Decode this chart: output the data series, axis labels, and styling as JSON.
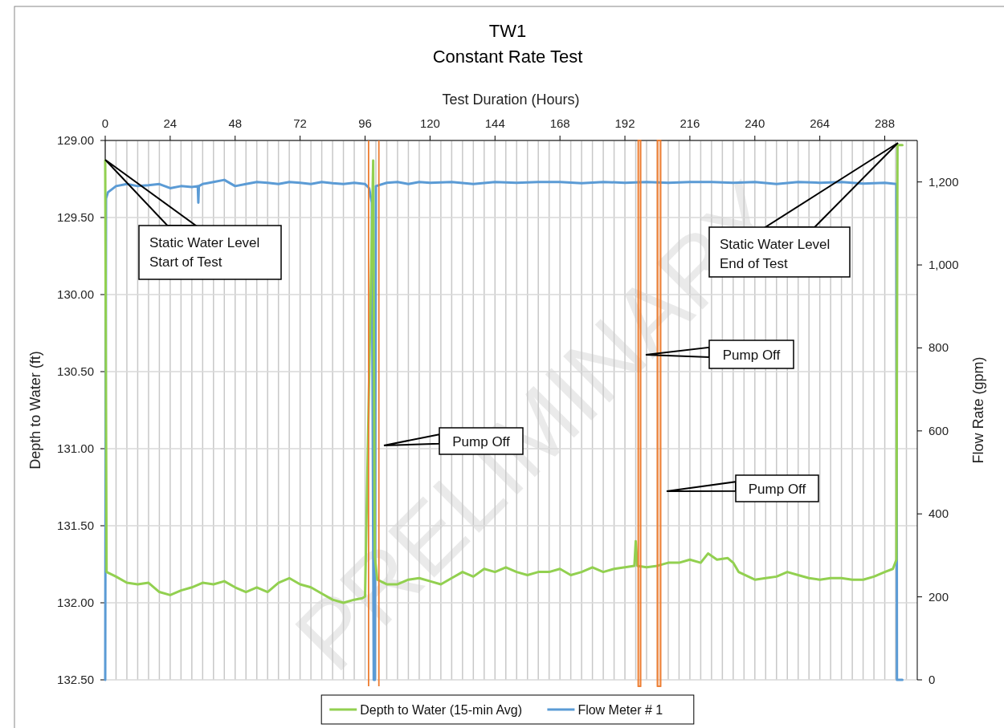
{
  "chart_data": {
    "type": "line",
    "title": "TW1",
    "subtitle": "Constant Rate Test",
    "xlabel": "Test Duration (Hours)",
    "ylabel": "Depth to Water (ft)",
    "y2label": "Flow Rate (gpm)",
    "xlim": [
      0,
      300
    ],
    "xticks": [
      0,
      {
        "value": 4,
        "label": null
      },
      {
        "value": 8,
        "label": null
      },
      {
        "value": 12,
        "label": null
      },
      {
        "value": 16,
        "label": null
      },
      {
        "value": 20,
        "label": null
      },
      24,
      {
        "value": 28,
        "label": null
      },
      {
        "value": 32,
        "label": null
      },
      {
        "value": 36,
        "label": null
      },
      {
        "value": 40,
        "label": null
      },
      {
        "value": 44,
        "label": null
      },
      48,
      {
        "value": 52,
        "label": null
      },
      {
        "value": 56,
        "label": null
      },
      {
        "value": 60,
        "label": null
      },
      {
        "value": 64,
        "label": null
      },
      {
        "value": 68,
        "label": null
      },
      72,
      {
        "value": 76,
        "label": null
      },
      {
        "value": 80,
        "label": null
      },
      {
        "value": 84,
        "label": null
      },
      {
        "value": 88,
        "label": null
      },
      {
        "value": 92,
        "label": null
      },
      96,
      {
        "value": 100,
        "label": null
      },
      {
        "value": 104,
        "label": null
      },
      {
        "value": 108,
        "label": null
      },
      {
        "value": 112,
        "label": null
      },
      {
        "value": 116,
        "label": null
      },
      120,
      {
        "value": 124,
        "label": null
      },
      {
        "value": 128,
        "label": null
      },
      {
        "value": 132,
        "label": null
      },
      {
        "value": 136,
        "label": null
      },
      {
        "value": 140,
        "label": null
      },
      144,
      {
        "value": 148,
        "label": null
      },
      {
        "value": 152,
        "label": null
      },
      {
        "value": 156,
        "label": null
      },
      {
        "value": 160,
        "label": null
      },
      {
        "value": 164,
        "label": null
      },
      168,
      {
        "value": 172,
        "label": null
      },
      {
        "value": 176,
        "label": null
      },
      {
        "value": 180,
        "label": null
      },
      {
        "value": 184,
        "label": null
      },
      {
        "value": 188,
        "label": null
      },
      192,
      {
        "value": 196,
        "label": null
      },
      {
        "value": 200,
        "label": null
      },
      {
        "value": 204,
        "label": null
      },
      {
        "value": 208,
        "label": null
      },
      {
        "value": 212,
        "label": null
      },
      216,
      {
        "value": 220,
        "label": null
      },
      {
        "value": 224,
        "label": null
      },
      {
        "value": 228,
        "label": null
      },
      {
        "value": 232,
        "label": null
      },
      {
        "value": 236,
        "label": null
      },
      240,
      {
        "value": 244,
        "label": null
      },
      {
        "value": 248,
        "label": null
      },
      {
        "value": 252,
        "label": null
      },
      {
        "value": 256,
        "label": null
      },
      {
        "value": 260,
        "label": null
      },
      264,
      {
        "value": 268,
        "label": null
      },
      {
        "value": 272,
        "label": null
      },
      {
        "value": 276,
        "label": null
      },
      {
        "value": 280,
        "label": null
      },
      {
        "value": 284,
        "label": null
      },
      288,
      {
        "value": 292,
        "label": null
      },
      {
        "value": 296,
        "label": null
      }
    ],
    "ylim": [
      132.5,
      129
    ],
    "yticks": [
      {
        "value": 129,
        "label": "129.00"
      },
      {
        "value": 129.5,
        "label": "129.50"
      },
      {
        "value": 130,
        "label": "130.00"
      },
      {
        "value": 130.5,
        "label": "130.50"
      },
      {
        "value": 131,
        "label": "131.00"
      },
      {
        "value": 131.5,
        "label": "131.50"
      },
      {
        "value": 132,
        "label": "132.00"
      },
      {
        "value": 132.5,
        "label": "132.50"
      }
    ],
    "y2lim": [
      0,
      1300
    ],
    "y2ticks": [
      0,
      200,
      400,
      600,
      800,
      {
        "value": 1000,
        "label": "1,000"
      },
      {
        "value": 1200,
        "label": "1,200"
      }
    ],
    "grid": true,
    "legend": "bottom",
    "marker": "none",
    "line_style": "solid",
    "series": [
      {
        "name": "Depth to Water (15-min Avg)",
        "color": "#92d050",
        "x": [
          0,
          0.5,
          4,
          8,
          12,
          16,
          20,
          24,
          28,
          32,
          36,
          40,
          44,
          48,
          52,
          56,
          60,
          64,
          68,
          72,
          76,
          80,
          84,
          88,
          92,
          95,
          96,
          99,
          99.6,
          100.5,
          104,
          108,
          112,
          116,
          120,
          124,
          128,
          132,
          136,
          140,
          144,
          148,
          152,
          156,
          160,
          164,
          168,
          172,
          176,
          180,
          184,
          188,
          192,
          195.5,
          196,
          196.6,
          200,
          204,
          208,
          212,
          216,
          220,
          222.7,
          226,
          230,
          232,
          234,
          240,
          244,
          248,
          252,
          256,
          260,
          264,
          268,
          272,
          276,
          280,
          284,
          288,
          291,
          292.3,
          292.7,
          294.5
        ],
        "values": [
          129.13,
          131.8,
          131.83,
          131.87,
          131.88,
          131.87,
          131.93,
          131.95,
          131.92,
          131.9,
          131.87,
          131.88,
          131.86,
          131.9,
          131.93,
          131.9,
          131.93,
          131.87,
          131.84,
          131.88,
          131.9,
          131.94,
          131.98,
          132.0,
          131.98,
          131.97,
          131.96,
          129.13,
          131.7,
          131.85,
          131.88,
          131.88,
          131.85,
          131.84,
          131.86,
          131.88,
          131.84,
          131.8,
          131.83,
          131.78,
          131.8,
          131.77,
          131.8,
          131.82,
          131.8,
          131.8,
          131.78,
          131.82,
          131.8,
          131.77,
          131.8,
          131.78,
          131.77,
          131.76,
          131.6,
          131.76,
          131.77,
          131.76,
          131.74,
          131.74,
          131.72,
          131.74,
          131.68,
          131.72,
          131.71,
          131.74,
          131.8,
          131.85,
          131.84,
          131.83,
          131.8,
          131.82,
          131.84,
          131.85,
          131.84,
          131.84,
          131.85,
          131.85,
          131.83,
          131.8,
          131.78,
          131.72,
          129.03,
          129.03
        ]
      },
      {
        "name": "Flow Meter # 1",
        "color": "#5b9bd5",
        "axis": "y2",
        "x": [
          0,
          0.3,
          1,
          4,
          8,
          12,
          16,
          20,
          24,
          28,
          32,
          34.2,
          34.4,
          34.6,
          36,
          40,
          44,
          48,
          52,
          56,
          60,
          64,
          68,
          72,
          76,
          80,
          84,
          88,
          92,
          96,
          97.5,
          98.5,
          99.2,
          99.6,
          100,
          104,
          108,
          112,
          116,
          120,
          128,
          136,
          144,
          152,
          160,
          168,
          176,
          184,
          192,
          200,
          208,
          216,
          224,
          232,
          240,
          248,
          256,
          264,
          272,
          280,
          288,
          292.3,
          292.5,
          294.5
        ],
        "values": [
          0,
          1160,
          1175,
          1190,
          1195,
          1190,
          1192,
          1195,
          1185,
          1190,
          1188,
          1190,
          1150,
          1190,
          1195,
          1200,
          1205,
          1190,
          1195,
          1200,
          1198,
          1195,
          1200,
          1198,
          1195,
          1200,
          1197,
          1195,
          1198,
          1195,
          1185,
          1150,
          0,
          0,
          1190,
          1198,
          1200,
          1195,
          1200,
          1198,
          1200,
          1195,
          1200,
          1198,
          1200,
          1200,
          1197,
          1200,
          1198,
          1200,
          1198,
          1200,
          1200,
          1198,
          1200,
          1195,
          1200,
          1198,
          1200,
          1196,
          1198,
          1195,
          0,
          0
        ]
      }
    ],
    "ref_lines": [
      {
        "axis": "x",
        "value": 97.3,
        "color": "#ed7d31"
      },
      {
        "axis": "x",
        "value": 101.1,
        "color": "#ed7d31"
      }
    ],
    "bands": [
      {
        "axis": "x",
        "from": 196.9,
        "to": 197.8,
        "color": "#ed7d31"
      },
      {
        "axis": "x",
        "from": 204.0,
        "to": 205.2,
        "color": "#ed7d31"
      }
    ],
    "annotations": [
      "Static Water Level\nStart of Test",
      "Static Water Level\nEnd of Test",
      "Pump Off",
      "Pump Off",
      "Pump Off",
      "PRELIMINARY"
    ]
  }
}
